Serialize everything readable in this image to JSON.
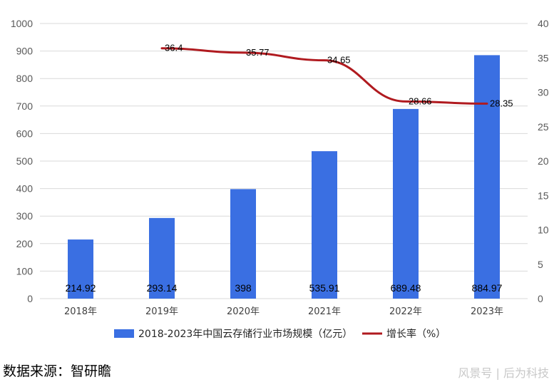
{
  "chart_data": {
    "type": "bar",
    "categories": [
      "2018年",
      "2019年",
      "2020年",
      "2021年",
      "2022年",
      "2023年"
    ],
    "series": [
      {
        "name": "2018-2023年中国云存储行业市场规模（亿元）",
        "chart": "bar",
        "axis": "left",
        "color": "#3a6fe2",
        "values": [
          214.92,
          293.14,
          398,
          535.91,
          689.48,
          884.97
        ],
        "labels": [
          "214.92",
          "293.14",
          "398",
          "535.91",
          "689.48",
          "884.97"
        ]
      },
      {
        "name": "增长率（%）",
        "chart": "line",
        "axis": "right",
        "color": "#b01a1f",
        "smooth": true,
        "x": [
          "2019年",
          "2020年",
          "2021年",
          "2022年",
          "2023年"
        ],
        "values": [
          36.4,
          35.77,
          34.65,
          28.66,
          28.35
        ],
        "labels": [
          "36.4",
          "35.77",
          "34.65",
          "28.66",
          "28.35"
        ]
      }
    ],
    "y_left": {
      "lim": [
        0,
        1000
      ],
      "ticks": [
        "0",
        "100",
        "200",
        "300",
        "400",
        "500",
        "600",
        "700",
        "800",
        "900",
        "1000"
      ]
    },
    "y_right": {
      "lim": [
        0,
        40
      ],
      "ticks": [
        "0",
        "5",
        "10",
        "15",
        "20",
        "25",
        "30",
        "35",
        "40"
      ]
    },
    "grid": true,
    "legend_position": "bottom"
  },
  "footer": {
    "source": "数据来源：智研瞻",
    "watermark": "风景号 | 后为科技"
  }
}
